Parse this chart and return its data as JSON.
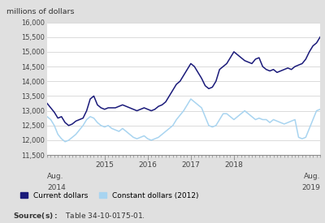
{
  "ylabel": "millions of dollars",
  "ylim": [
    11500,
    16000
  ],
  "yticks": [
    11500,
    12000,
    12500,
    13000,
    13500,
    14000,
    14500,
    15000,
    15500,
    16000
  ],
  "bg_color": "#e0e0e0",
  "plot_bg_color": "#ffffff",
  "current_color": "#1a1a7a",
  "constant_color": "#a8d4f0",
  "legend_current": "Current dollars",
  "legend_constant": "Constant dollars (2012)",
  "current_dollars": [
    13250,
    13100,
    12950,
    12750,
    12800,
    12600,
    12500,
    12550,
    12650,
    12700,
    12750,
    13000,
    13400,
    13500,
    13200,
    13100,
    13050,
    13100,
    13100,
    13100,
    13150,
    13200,
    13150,
    13100,
    13050,
    13000,
    13050,
    13100,
    13050,
    13000,
    13050,
    13150,
    13200,
    13300,
    13500,
    13700,
    13900,
    14000,
    14200,
    14400,
    14600,
    14500,
    14300,
    14100,
    13850,
    13750,
    13800,
    14000,
    14400,
    14500,
    14600,
    14800,
    15000,
    14900,
    14800,
    14700,
    14650,
    14600,
    14750,
    14800,
    14500,
    14400,
    14350,
    14400,
    14300,
    14350,
    14400,
    14450,
    14400,
    14500,
    14550,
    14600,
    14750,
    15000,
    15200,
    15300,
    15500
  ],
  "constant_dollars": [
    12800,
    12700,
    12500,
    12200,
    12050,
    11950,
    12000,
    12100,
    12200,
    12350,
    12500,
    12700,
    12800,
    12750,
    12600,
    12500,
    12450,
    12500,
    12400,
    12350,
    12300,
    12400,
    12300,
    12200,
    12100,
    12050,
    12100,
    12150,
    12050,
    12000,
    12050,
    12100,
    12200,
    12300,
    12400,
    12500,
    12700,
    12850,
    13000,
    13200,
    13400,
    13300,
    13200,
    13100,
    12800,
    12500,
    12450,
    12500,
    12700,
    12900,
    12900,
    12800,
    12700,
    12800,
    12900,
    13000,
    12900,
    12800,
    12700,
    12750,
    12700,
    12700,
    12600,
    12700,
    12650,
    12600,
    12550,
    12600,
    12650,
    12700,
    12100,
    12050,
    12100,
    12400,
    12700,
    13000,
    13050
  ],
  "x_tick_labels_main": [
    "2015",
    "2016",
    "2017",
    "2018"
  ],
  "x_tick_positions_main": [
    16,
    28,
    40,
    52
  ],
  "x_tick_positions_minor": [
    0,
    4,
    8,
    12,
    16,
    20,
    24,
    28,
    32,
    36,
    40,
    44,
    48,
    52,
    56,
    60,
    64,
    68,
    72,
    76
  ]
}
